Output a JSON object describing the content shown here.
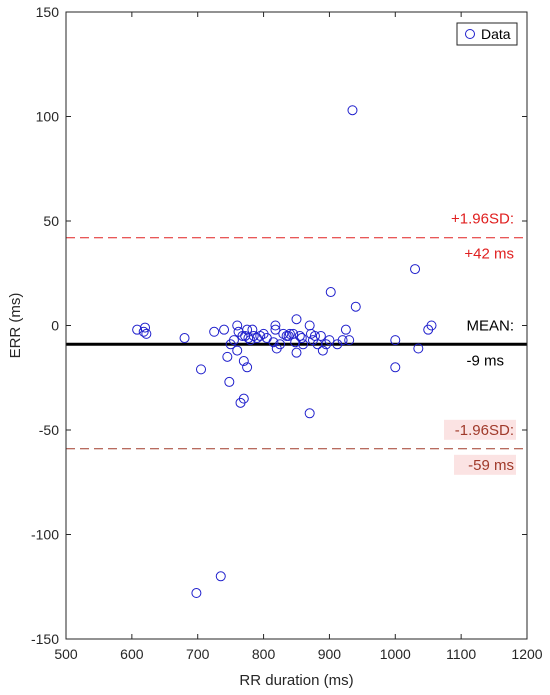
{
  "chart_data": {
    "type": "scatter",
    "xlabel": "RR duration (ms)",
    "ylabel": "ERR (ms)",
    "xlim": [
      500,
      1200
    ],
    "ylim": [
      -150,
      150
    ],
    "xticks": [
      500,
      600,
      700,
      800,
      900,
      1000,
      1100,
      1200
    ],
    "yticks": [
      -150,
      -100,
      -50,
      0,
      50,
      100,
      150
    ],
    "grid": false,
    "legend": {
      "position": "top-right",
      "entries": [
        "Data"
      ]
    },
    "series": [
      {
        "name": "Data",
        "marker": "open-circle",
        "color": "#1f1fcc",
        "points": [
          [
            608,
            -2
          ],
          [
            618,
            -3
          ],
          [
            620,
            -1
          ],
          [
            622,
            -4
          ],
          [
            680,
            -6
          ],
          [
            698,
            -128
          ],
          [
            705,
            -21
          ],
          [
            725,
            -3
          ],
          [
            735,
            -120
          ],
          [
            740,
            -2
          ],
          [
            745,
            -15
          ],
          [
            748,
            -27
          ],
          [
            750,
            -9
          ],
          [
            755,
            -7
          ],
          [
            760,
            -12
          ],
          [
            760,
            0
          ],
          [
            762,
            -3
          ],
          [
            765,
            -37
          ],
          [
            768,
            -5
          ],
          [
            770,
            -35
          ],
          [
            770,
            -17
          ],
          [
            772,
            -5
          ],
          [
            775,
            -2
          ],
          [
            775,
            -20
          ],
          [
            777,
            -6
          ],
          [
            780,
            -7
          ],
          [
            783,
            -2
          ],
          [
            785,
            -5
          ],
          [
            790,
            -6
          ],
          [
            795,
            -5
          ],
          [
            800,
            -4
          ],
          [
            805,
            -6
          ],
          [
            815,
            -8
          ],
          [
            818,
            -2
          ],
          [
            818,
            0
          ],
          [
            820,
            -11
          ],
          [
            825,
            -9
          ],
          [
            830,
            -4
          ],
          [
            835,
            -5
          ],
          [
            838,
            -5
          ],
          [
            840,
            -4
          ],
          [
            845,
            -4
          ],
          [
            848,
            -8
          ],
          [
            850,
            -13
          ],
          [
            850,
            3
          ],
          [
            855,
            -5
          ],
          [
            858,
            -6
          ],
          [
            860,
            -9
          ],
          [
            870,
            -42
          ],
          [
            870,
            0
          ],
          [
            872,
            -4
          ],
          [
            875,
            -7
          ],
          [
            878,
            -5
          ],
          [
            882,
            -9
          ],
          [
            887,
            -5
          ],
          [
            890,
            -12
          ],
          [
            895,
            -9
          ],
          [
            900,
            -7
          ],
          [
            902,
            16
          ],
          [
            912,
            -9
          ],
          [
            920,
            -7
          ],
          [
            925,
            -2
          ],
          [
            930,
            -7
          ],
          [
            935,
            103
          ],
          [
            940,
            9
          ],
          [
            1000,
            -7
          ],
          [
            1000,
            -20
          ],
          [
            1030,
            27
          ],
          [
            1035,
            -11
          ],
          [
            1050,
            -2
          ],
          [
            1055,
            0
          ]
        ]
      }
    ],
    "reference_lines": [
      {
        "name": "mean",
        "y": -9,
        "color": "#000000",
        "style": "solid",
        "label_top": "MEAN:",
        "label_bottom": "-9 ms"
      },
      {
        "name": "upper-limit",
        "y": 42,
        "color": "#e02020",
        "style": "dashed",
        "label_top": "+1.96SD:",
        "label_bottom": "+42 ms"
      },
      {
        "name": "lower-limit",
        "y": -59,
        "color": "#a03a2a",
        "style": "dashed",
        "label_top": "-1.96SD:",
        "label_bottom": "-59 ms"
      }
    ],
    "colors": {
      "axis": "#262626",
      "marker": "#1f1fcc",
      "mean": "#000000",
      "upper": "#e02020",
      "lower": "#a03a2a",
      "lower_label_bg": "#fbe3e3"
    }
  }
}
